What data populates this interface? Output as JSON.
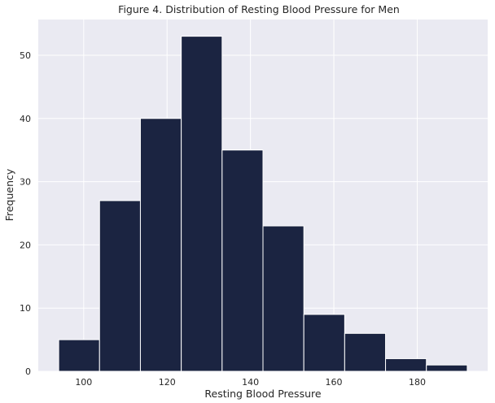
{
  "chart_data": {
    "type": "bar",
    "title": "Figure 4. Distribution of Resting Blood Pressure for Men",
    "xlabel": "Resting Blood Pressure",
    "ylabel": "Frequency",
    "bins": [
      {
        "start": 94,
        "end": 103.8,
        "count": 5
      },
      {
        "start": 103.8,
        "end": 113.6,
        "count": 27
      },
      {
        "start": 113.6,
        "end": 123.4,
        "count": 40
      },
      {
        "start": 123.4,
        "end": 133.2,
        "count": 53
      },
      {
        "start": 133.2,
        "end": 143.0,
        "count": 35
      },
      {
        "start": 143.0,
        "end": 152.8,
        "count": 23
      },
      {
        "start": 152.8,
        "end": 162.6,
        "count": 9
      },
      {
        "start": 162.6,
        "end": 172.4,
        "count": 6
      },
      {
        "start": 172.4,
        "end": 182.2,
        "count": 2
      },
      {
        "start": 182.2,
        "end": 192,
        "count": 1
      }
    ],
    "xlim": [
      89.1,
      196.9
    ],
    "ylim": [
      0,
      55.65
    ],
    "xticks": [
      100,
      120,
      140,
      160,
      180
    ],
    "yticks": [
      0,
      10,
      20,
      30,
      40,
      50
    ],
    "grid": true,
    "legend": "none",
    "colors": {
      "bar": "#1b2441",
      "bar_edge": "#ffffff",
      "background": "#eaeaf2",
      "grid": "#ffffff"
    }
  }
}
